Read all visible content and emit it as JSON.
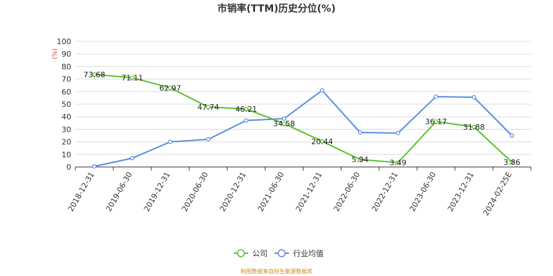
{
  "chart_data": {
    "type": "line",
    "title": "市销率(TTM)历史分位(%)",
    "ylabel": "(%)",
    "ylim": [
      0,
      100
    ],
    "yticks": [
      0,
      10,
      20,
      30,
      40,
      50,
      60,
      70,
      80,
      90,
      100
    ],
    "categories": [
      "2018-12-31",
      "2019-06-30",
      "2019-12-31",
      "2020-06-30",
      "2020-12-31",
      "2021-06-30",
      "2021-12-31",
      "2022-06-30",
      "2022-12-31",
      "2023-06-30",
      "2023-12-31",
      "2024-02-25E"
    ],
    "series": [
      {
        "name": "公司",
        "color": "#5ec12b",
        "values": [
          73.68,
          71.11,
          62.97,
          47.74,
          46.21,
          34.58,
          20.44,
          5.94,
          3.49,
          36.17,
          31.88,
          3.86
        ],
        "labels": [
          "73.68",
          "71.11",
          "62.97",
          "47.74",
          "46.21",
          "34.58",
          "20.44",
          "5.94",
          "3.49",
          "36.17",
          "31.88",
          "3.86"
        ]
      },
      {
        "name": "行业均值",
        "color": "#5b8de0",
        "values": [
          0.5,
          7,
          20,
          22,
          37,
          38.5,
          61,
          27.5,
          27,
          56,
          55.5,
          25
        ]
      }
    ],
    "grid": true,
    "legend": "bottom-center"
  },
  "source": "制图数据来自恒生聚源数据库"
}
